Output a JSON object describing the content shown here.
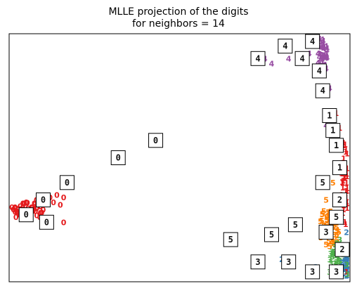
{
  "chart_data": {
    "type": "scatter",
    "title_lines": [
      "MLLE projection of the digits",
      "for neighbors = 14"
    ],
    "xlabel": "",
    "ylabel": "",
    "xlim": [
      0,
      1
    ],
    "ylim": [
      0,
      1
    ],
    "axis_ticks": false,
    "grid": false,
    "legend": false,
    "class_colors": {
      "0": "#e41a1c",
      "1": "#e41a1c",
      "2": "#377eb8",
      "3": "#4daf4a",
      "4": "#984ea3",
      "5": "#ff7f00"
    },
    "points": [
      {
        "label": "0",
        "x": 0.04,
        "y": 0.3
      },
      {
        "label": "0",
        "x": 0.03,
        "y": 0.27
      },
      {
        "label": "0",
        "x": 0.02,
        "y": 0.26
      },
      {
        "label": "0",
        "x": 0.06,
        "y": 0.27
      },
      {
        "label": "0",
        "x": 0.09,
        "y": 0.26
      },
      {
        "label": "0",
        "x": 0.13,
        "y": 0.32
      },
      {
        "label": "0",
        "x": 0.14,
        "y": 0.35
      },
      {
        "label": "0",
        "x": 0.12,
        "y": 0.34
      },
      {
        "label": "0",
        "x": 0.16,
        "y": 0.34
      },
      {
        "label": "0",
        "x": 0.16,
        "y": 0.24
      },
      {
        "label": "0",
        "x": 0.1,
        "y": 0.29
      },
      {
        "label": "0",
        "x": 0.15,
        "y": 0.31
      },
      {
        "label": "0",
        "x": 0.05,
        "y": 0.32
      },
      {
        "label": "0",
        "x": 0.08,
        "y": 0.33
      },
      {
        "label": "4",
        "x": 0.77,
        "y": 0.88
      },
      {
        "label": "4",
        "x": 0.75,
        "y": 0.9
      },
      {
        "label": "4",
        "x": 0.82,
        "y": 0.9
      },
      {
        "label": "4",
        "x": 0.86,
        "y": 0.9
      },
      {
        "label": "4",
        "x": 0.88,
        "y": 0.92
      },
      {
        "label": "4",
        "x": 0.9,
        "y": 0.95
      },
      {
        "label": "4",
        "x": 0.91,
        "y": 0.98
      },
      {
        "label": "4",
        "x": 0.93,
        "y": 0.86
      },
      {
        "label": "4",
        "x": 0.94,
        "y": 0.78
      },
      {
        "label": "4",
        "x": 0.93,
        "y": 0.63
      },
      {
        "label": "1",
        "x": 0.96,
        "y": 0.68
      },
      {
        "label": "1",
        "x": 0.97,
        "y": 0.62
      },
      {
        "label": "1",
        "x": 0.98,
        "y": 0.55
      },
      {
        "label": "1",
        "x": 0.98,
        "y": 0.48
      },
      {
        "label": "1",
        "x": 0.99,
        "y": 0.4
      },
      {
        "label": "1",
        "x": 0.99,
        "y": 0.34
      },
      {
        "label": "1",
        "x": 0.99,
        "y": 0.04
      },
      {
        "label": "5",
        "x": 0.95,
        "y": 0.4
      },
      {
        "label": "5",
        "x": 0.93,
        "y": 0.33
      },
      {
        "label": "5",
        "x": 0.94,
        "y": 0.27
      },
      {
        "label": "5",
        "x": 0.92,
        "y": 0.2
      },
      {
        "label": "5",
        "x": 0.93,
        "y": 0.15
      },
      {
        "label": "5",
        "x": 0.95,
        "y": 0.22
      },
      {
        "label": "5",
        "x": 0.97,
        "y": 0.25
      },
      {
        "label": "2",
        "x": 0.8,
        "y": 0.09
      },
      {
        "label": "2",
        "x": 0.9,
        "y": 0.06
      },
      {
        "label": "2",
        "x": 0.99,
        "y": 0.2
      },
      {
        "label": "2",
        "x": 0.98,
        "y": 0.14
      },
      {
        "label": "2",
        "x": 1.0,
        "y": 0.1
      },
      {
        "label": "3",
        "x": 0.94,
        "y": 0.04
      },
      {
        "label": "3",
        "x": 0.96,
        "y": 0.08
      },
      {
        "label": "3",
        "x": 0.97,
        "y": 0.17
      },
      {
        "label": "3",
        "x": 0.99,
        "y": 0.07
      },
      {
        "label": "3",
        "x": 1.0,
        "y": 0.03
      }
    ],
    "dense_clusters": [
      {
        "label": "0",
        "cx": 0.05,
        "cy": 0.29,
        "rx": 0.05,
        "ry": 0.03,
        "n": 40
      },
      {
        "label": "4",
        "cx": 0.92,
        "cy": 0.9,
        "rx": 0.015,
        "ry": 0.08,
        "n": 40
      },
      {
        "label": "1",
        "cx": 0.985,
        "cy": 0.4,
        "rx": 0.01,
        "ry": 0.18,
        "n": 40
      },
      {
        "label": "5",
        "cx": 0.94,
        "cy": 0.22,
        "rx": 0.03,
        "ry": 0.08,
        "n": 50
      },
      {
        "label": "3",
        "cx": 0.97,
        "cy": 0.1,
        "rx": 0.03,
        "ry": 0.06,
        "n": 40
      },
      {
        "label": "2",
        "cx": 0.99,
        "cy": 0.08,
        "rx": 0.015,
        "ry": 0.06,
        "n": 45
      }
    ],
    "thumbnails": [
      {
        "digit": "4",
        "x": 0.89,
        "y": 0.97
      },
      {
        "digit": "4",
        "x": 0.81,
        "y": 0.95
      },
      {
        "digit": "4",
        "x": 0.73,
        "y": 0.9
      },
      {
        "digit": "4",
        "x": 0.86,
        "y": 0.9
      },
      {
        "digit": "4",
        "x": 0.91,
        "y": 0.85
      },
      {
        "digit": "4",
        "x": 0.92,
        "y": 0.77
      },
      {
        "digit": "1",
        "x": 0.94,
        "y": 0.67
      },
      {
        "digit": "1",
        "x": 0.95,
        "y": 0.61
      },
      {
        "digit": "1",
        "x": 0.96,
        "y": 0.55
      },
      {
        "digit": "1",
        "x": 0.97,
        "y": 0.46
      },
      {
        "digit": "0",
        "x": 0.43,
        "y": 0.57
      },
      {
        "digit": "0",
        "x": 0.32,
        "y": 0.5
      },
      {
        "digit": "0",
        "x": 0.17,
        "y": 0.4
      },
      {
        "digit": "0",
        "x": 0.1,
        "y": 0.33
      },
      {
        "digit": "0",
        "x": 0.05,
        "y": 0.27
      },
      {
        "digit": "0",
        "x": 0.11,
        "y": 0.24
      },
      {
        "digit": "5",
        "x": 0.92,
        "y": 0.4
      },
      {
        "digit": "2",
        "x": 0.97,
        "y": 0.33
      },
      {
        "digit": "5",
        "x": 0.96,
        "y": 0.26
      },
      {
        "digit": "3",
        "x": 0.93,
        "y": 0.2
      },
      {
        "digit": "5",
        "x": 0.84,
        "y": 0.23
      },
      {
        "digit": "5",
        "x": 0.77,
        "y": 0.19
      },
      {
        "digit": "5",
        "x": 0.65,
        "y": 0.17
      },
      {
        "digit": "2",
        "x": 0.98,
        "y": 0.13
      },
      {
        "digit": "3",
        "x": 0.73,
        "y": 0.08
      },
      {
        "digit": "3",
        "x": 0.82,
        "y": 0.08
      },
      {
        "digit": "3",
        "x": 0.89,
        "y": 0.04
      },
      {
        "digit": "3",
        "x": 0.96,
        "y": 0.04
      }
    ]
  }
}
